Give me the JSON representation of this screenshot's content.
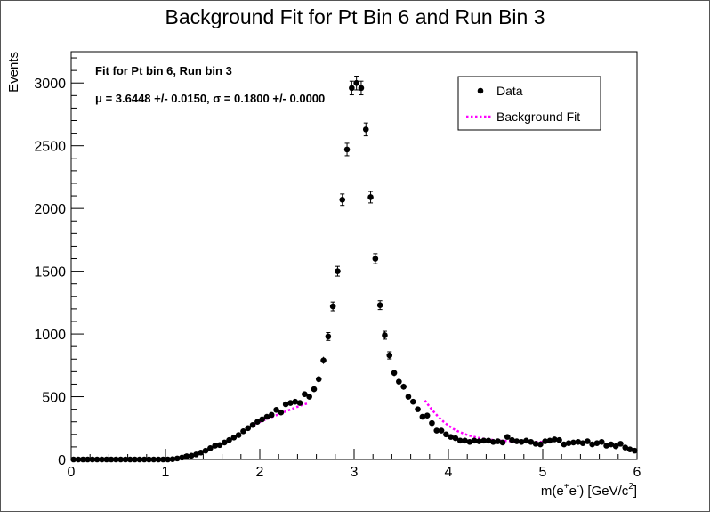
{
  "chart_data": {
    "type": "scatter",
    "title": "Background Fit for Pt Bin 6 and Run Bin 3",
    "xlabel": "m(e⁺e⁻) [GeV/c²]",
    "ylabel": "Events",
    "xlim": [
      0,
      6
    ],
    "ylim": [
      0,
      3250
    ],
    "x_ticks": [
      "0",
      "1",
      "2",
      "3",
      "4",
      "5",
      "6"
    ],
    "y_ticks": [
      "0",
      "500",
      "1000",
      "1500",
      "2000",
      "2500",
      "3000"
    ],
    "annotations": [
      "Fit for Pt bin 6, Run bin 3",
      "μ = 3.6448 +/- 0.0150, σ = 0.1800 +/- 0.0000"
    ],
    "legend": {
      "position": "top-right",
      "entries": [
        "Data",
        "Background Fit"
      ]
    },
    "colors": {
      "data": "#000000",
      "fit": "#ff00ff"
    },
    "series": [
      {
        "name": "Data",
        "style": "points-with-errors",
        "x": [
          0.025,
          0.075,
          0.125,
          0.175,
          0.225,
          0.275,
          0.325,
          0.375,
          0.425,
          0.475,
          0.525,
          0.575,
          0.625,
          0.675,
          0.725,
          0.775,
          0.825,
          0.875,
          0.925,
          0.975,
          1.025,
          1.075,
          1.125,
          1.175,
          1.225,
          1.275,
          1.325,
          1.375,
          1.425,
          1.475,
          1.525,
          1.575,
          1.625,
          1.675,
          1.725,
          1.775,
          1.825,
          1.875,
          1.925,
          1.975,
          2.025,
          2.075,
          2.125,
          2.175,
          2.225,
          2.275,
          2.325,
          2.375,
          2.425,
          2.475,
          2.525,
          2.575,
          2.625,
          2.675,
          2.725,
          2.775,
          2.825,
          2.875,
          2.925,
          2.975,
          3.025,
          3.075,
          3.125,
          3.175,
          3.225,
          3.275,
          3.325,
          3.375,
          3.425,
          3.475,
          3.525,
          3.575,
          3.625,
          3.675,
          3.725,
          3.775,
          3.825,
          3.875,
          3.925,
          3.975,
          4.025,
          4.075,
          4.125,
          4.175,
          4.225,
          4.275,
          4.325,
          4.375,
          4.425,
          4.475,
          4.525,
          4.575,
          4.625,
          4.675,
          4.725,
          4.775,
          4.825,
          4.875,
          4.925,
          4.975,
          5.025,
          5.075,
          5.125,
          5.175,
          5.225,
          5.275,
          5.325,
          5.375,
          5.425,
          5.475,
          5.525,
          5.575,
          5.625,
          5.675,
          5.725,
          5.775,
          5.825,
          5.875,
          5.925,
          5.975
        ],
        "y": [
          0,
          0,
          0,
          0,
          0,
          0,
          0,
          0,
          0,
          0,
          0,
          0,
          0,
          0,
          0,
          0,
          0,
          0,
          0,
          0,
          0,
          2,
          8,
          15,
          25,
          30,
          40,
          55,
          70,
          90,
          110,
          115,
          135,
          155,
          175,
          195,
          225,
          250,
          275,
          300,
          320,
          340,
          355,
          395,
          375,
          440,
          450,
          460,
          450,
          520,
          500,
          560,
          640,
          790,
          980,
          1220,
          1500,
          2070,
          2470,
          2960,
          3000,
          2960,
          2630,
          2090,
          1600,
          1230,
          990,
          830,
          690,
          620,
          580,
          500,
          460,
          400,
          340,
          350,
          290,
          230,
          230,
          200,
          180,
          170,
          150,
          150,
          140,
          150,
          145,
          150,
          150,
          140,
          145,
          135,
          180,
          155,
          145,
          140,
          150,
          140,
          125,
          120,
          145,
          150,
          160,
          155,
          120,
          130,
          135,
          140,
          130,
          145,
          120,
          130,
          140,
          110,
          120,
          105,
          125,
          95,
          80,
          70
        ],
        "yerr": [
          0,
          0,
          0,
          0,
          0,
          0,
          0,
          0,
          0,
          0,
          0,
          0,
          0,
          0,
          0,
          0,
          0,
          0,
          0,
          0,
          0,
          1.4,
          2.8,
          3.9,
          5,
          5.5,
          6.3,
          7.4,
          8.4,
          9.5,
          10.5,
          10.7,
          11.6,
          12.4,
          13.2,
          14,
          15,
          15.8,
          16.6,
          17.3,
          17.9,
          18.4,
          18.8,
          19.9,
          19.4,
          21,
          21.2,
          21.4,
          21.2,
          22.8,
          22.4,
          23.7,
          25.3,
          28.1,
          31.3,
          34.9,
          38.7,
          45.5,
          49.7,
          54.4,
          54.8,
          54.4,
          51.3,
          45.7,
          40,
          35.1,
          31.5,
          28.8,
          26.3,
          24.9,
          24.1,
          22.4,
          21.4,
          20,
          18.4,
          18.7,
          17,
          15.2,
          15.2,
          14.1,
          13.4,
          13,
          12.2,
          12.2,
          11.8,
          12.2,
          12,
          12.2,
          12.2,
          11.8,
          12,
          11.6,
          13.4,
          12.4,
          12,
          11.8,
          12.2,
          11.8,
          11.2,
          11,
          12,
          12.2,
          12.6,
          12.4,
          11,
          11.4,
          11.6,
          11.8,
          11.4,
          12,
          11,
          11.4,
          11.8,
          10.5,
          11,
          10.2,
          11.2,
          9.7,
          8.9,
          8.4
        ]
      },
      {
        "name": "Background Fit",
        "style": "dotted-line",
        "segments": [
          {
            "x": [
              1.95,
              2.0,
              2.05,
              2.1,
              2.15,
              2.2,
              2.25,
              2.3,
              2.35,
              2.4,
              2.45,
              2.5
            ],
            "y": [
              285,
              300,
              315,
              330,
              345,
              360,
              375,
              390,
              405,
              420,
              435,
              445
            ]
          },
          {
            "x": [
              3.75,
              3.8,
              3.85,
              3.9,
              3.95,
              4.0,
              4.05,
              4.1,
              4.15,
              4.2,
              4.25,
              4.3,
              4.35,
              4.4,
              4.45,
              4.5,
              4.55,
              4.6,
              4.65,
              4.7,
              4.75,
              4.8,
              4.85,
              4.9,
              4.95,
              5.0
            ],
            "y": [
              470,
              420,
              375,
              335,
              300,
              270,
              245,
              225,
              210,
              195,
              185,
              175,
              168,
              162,
              157,
              153,
              150,
              148,
              146,
              144,
              143,
              142,
              141,
              140,
              140,
              139
            ]
          }
        ]
      }
    ]
  }
}
